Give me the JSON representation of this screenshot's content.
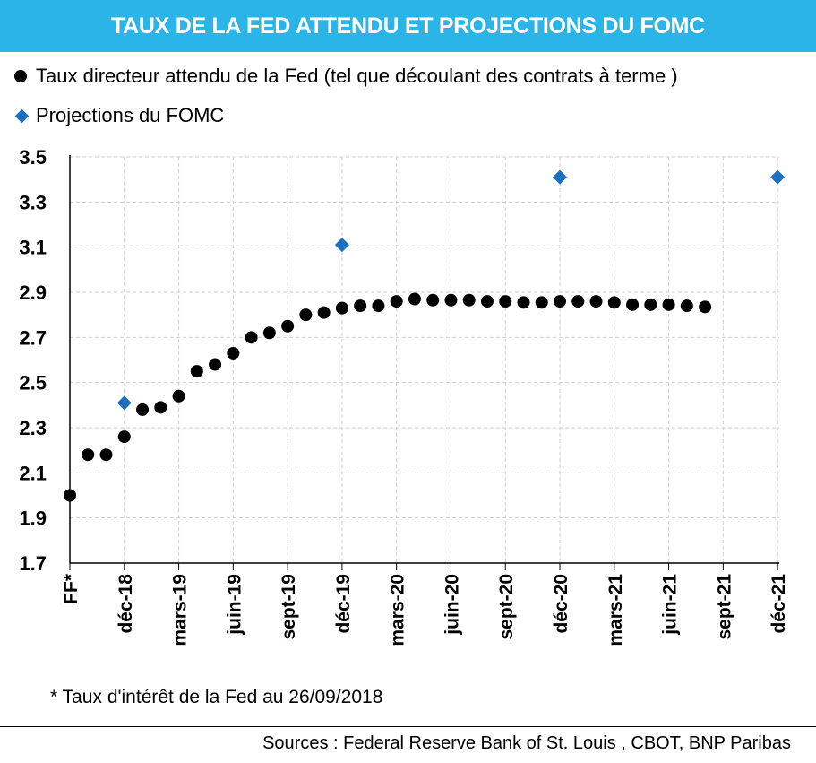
{
  "title": "TAUX DE LA FED ATTENDU ET PROJECTIONS DU FOMC",
  "legend": {
    "series1": "Taux directeur attendu de la Fed (tel que découlant des contrats à terme )",
    "series2": "Projections du FOMC"
  },
  "footnote": "* Taux d'intérêt de la Fed au 26/09/2018",
  "sources": "Sources : Federal Reserve Bank of St. Louis , CBOT, BNP Paribas",
  "colors": {
    "title_bg": "#2ab4e8",
    "fomc": "#1a6fc0",
    "fed": "#000000",
    "grid": "#cfcfcf"
  },
  "chart_data": {
    "type": "scatter",
    "ylim": [
      1.7,
      3.5
    ],
    "yticks": [
      "1.7",
      "1.9",
      "2.1",
      "2.3",
      "2.5",
      "2.7",
      "2.9",
      "3.1",
      "3.3",
      "3.5"
    ],
    "x_labels": [
      {
        "label": "FF*",
        "pos": 0
      },
      {
        "label": "déc-18",
        "pos": 3
      },
      {
        "label": "mars-19",
        "pos": 6
      },
      {
        "label": "juin-19",
        "pos": 9
      },
      {
        "label": "sept-19",
        "pos": 12
      },
      {
        "label": "déc-19",
        "pos": 15
      },
      {
        "label": "mars-20",
        "pos": 18
      },
      {
        "label": "juin-20",
        "pos": 21
      },
      {
        "label": "sept-20",
        "pos": 24
      },
      {
        "label": "déc-20",
        "pos": 27
      },
      {
        "label": "mars-21",
        "pos": 30
      },
      {
        "label": "juin-21",
        "pos": 33
      },
      {
        "label": "sept-21",
        "pos": 36
      },
      {
        "label": "déc-21",
        "pos": 39
      }
    ],
    "series": [
      {
        "name": "Taux directeur attendu de la Fed (tel que découlant des contrats à terme )",
        "marker": "circle",
        "x": [
          0,
          1,
          2,
          3,
          4,
          5,
          6,
          7,
          8,
          9,
          10,
          11,
          12,
          13,
          14,
          15,
          16,
          17,
          18,
          19,
          20,
          21,
          22,
          23,
          24,
          25,
          26,
          27,
          28,
          29,
          30,
          31,
          32,
          33,
          34,
          35
        ],
        "y": [
          2.0,
          2.18,
          2.18,
          2.26,
          2.38,
          2.39,
          2.44,
          2.55,
          2.58,
          2.63,
          2.7,
          2.72,
          2.75,
          2.8,
          2.81,
          2.83,
          2.84,
          2.84,
          2.86,
          2.87,
          2.865,
          2.865,
          2.865,
          2.86,
          2.86,
          2.855,
          2.855,
          2.86,
          2.86,
          2.86,
          2.855,
          2.845,
          2.845,
          2.845,
          2.84,
          2.835
        ]
      },
      {
        "name": "Projections du FOMC",
        "marker": "diamond",
        "x": [
          3,
          15,
          27,
          39
        ],
        "y": [
          2.41,
          3.11,
          3.41,
          3.41
        ]
      }
    ]
  }
}
